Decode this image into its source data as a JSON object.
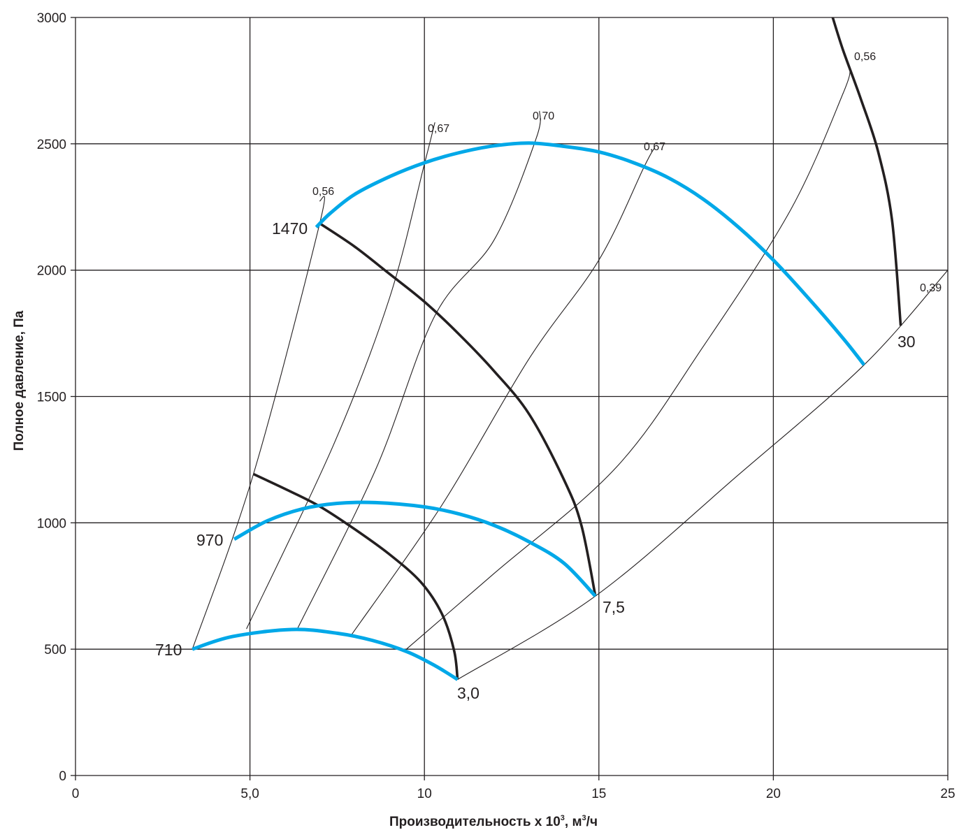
{
  "chart_data": {
    "type": "line",
    "title": "",
    "xlabel": "Производительность x 10",
    "xlabel_sup": "3",
    "xlabel_tail": ", м",
    "xlabel_sup2": "3",
    "xlabel_end": "/ч",
    "ylabel": "Полное давление, Па",
    "xlim": [
      0,
      25
    ],
    "ylim": [
      0,
      3000
    ],
    "grid": true,
    "x_ticks": [
      {
        "value": 0,
        "label": "0"
      },
      {
        "value": 5,
        "label": "5,0"
      },
      {
        "value": 10,
        "label": "10"
      },
      {
        "value": 15,
        "label": "15"
      },
      {
        "value": 20,
        "label": "20"
      },
      {
        "value": 25,
        "label": "25"
      }
    ],
    "y_ticks": [
      {
        "value": 0,
        "label": "0"
      },
      {
        "value": 500,
        "label": "500"
      },
      {
        "value": 1000,
        "label": "1000"
      },
      {
        "value": 1500,
        "label": "1500"
      },
      {
        "value": 2000,
        "label": "2000"
      },
      {
        "value": 2500,
        "label": "2500"
      },
      {
        "value": 3000,
        "label": "3000"
      }
    ],
    "speed_curves": [
      {
        "name": "710",
        "color": "#00a8e8",
        "points": [
          [
            3.35,
            500
          ],
          [
            4.5,
            550
          ],
          [
            6.2,
            578
          ],
          [
            7.5,
            563
          ],
          [
            8.5,
            535
          ],
          [
            9.5,
            490
          ],
          [
            10.3,
            435
          ],
          [
            10.95,
            380
          ]
        ]
      },
      {
        "name": "970",
        "color": "#00a8e8",
        "points": [
          [
            4.55,
            935
          ],
          [
            5.5,
            1008
          ],
          [
            6.5,
            1055
          ],
          [
            7.5,
            1077
          ],
          [
            8.6,
            1080
          ],
          [
            10,
            1063
          ],
          [
            11,
            1035
          ],
          [
            12,
            990
          ],
          [
            13,
            925
          ],
          [
            14,
            840
          ],
          [
            14.9,
            710
          ]
        ]
      },
      {
        "name": "1470",
        "color": "#00a8e8",
        "points": [
          [
            6.9,
            2170
          ],
          [
            7.3,
            2225
          ],
          [
            8,
            2300
          ],
          [
            9,
            2370
          ],
          [
            10,
            2425
          ],
          [
            11,
            2465
          ],
          [
            12,
            2492
          ],
          [
            13,
            2503
          ],
          [
            14,
            2490
          ],
          [
            15,
            2468
          ],
          [
            16,
            2425
          ],
          [
            17,
            2365
          ],
          [
            18,
            2280
          ],
          [
            19,
            2170
          ],
          [
            20,
            2040
          ],
          [
            21,
            1890
          ],
          [
            22,
            1730
          ],
          [
            22.6,
            1625
          ]
        ]
      }
    ],
    "power_curves": [
      {
        "name": "3,0",
        "color": "#231f20",
        "points": [
          [
            5.1,
            1193
          ],
          [
            6.1,
            1128
          ],
          [
            7,
            1065
          ],
          [
            8,
            975
          ],
          [
            9,
            875
          ],
          [
            9.9,
            765
          ],
          [
            10.5,
            640
          ],
          [
            10.85,
            495
          ],
          [
            10.95,
            380
          ]
        ]
      },
      {
        "name": "7,5",
        "color": "#231f20",
        "points": [
          [
            7.0,
            2185
          ],
          [
            8,
            2093
          ],
          [
            9,
            1985
          ],
          [
            10,
            1875
          ],
          [
            11,
            1745
          ],
          [
            12,
            1600
          ],
          [
            13,
            1430
          ],
          [
            14,
            1170
          ],
          [
            14.5,
            990
          ],
          [
            14.9,
            710
          ]
        ]
      },
      {
        "name": "30",
        "color": "#231f20",
        "points": [
          [
            21.7,
            3000
          ],
          [
            22,
            2870
          ],
          [
            22.5,
            2680
          ],
          [
            23,
            2470
          ],
          [
            23.4,
            2200
          ],
          [
            23.65,
            1780
          ]
        ]
      }
    ],
    "efficiency_rays": [
      {
        "name": "0,56",
        "points": [
          [
            3.35,
            500
          ],
          [
            5.1,
            1193
          ],
          [
            7.0,
            2185
          ],
          [
            7.0,
            2275
          ]
        ]
      },
      {
        "name": "0,67",
        "points": [
          [
            4.9,
            580
          ],
          [
            7.4,
            1310
          ],
          [
            9.0,
            1890
          ],
          [
            10.0,
            2420
          ],
          [
            10.3,
            2585
          ]
        ]
      },
      {
        "name": "0,70",
        "points": [
          [
            6.35,
            578
          ],
          [
            8.6,
            1210
          ],
          [
            10.3,
            1820
          ],
          [
            12.0,
            2120
          ],
          [
            13.2,
            2520
          ],
          [
            13.3,
            2630
          ]
        ]
      },
      {
        "name": "0,67",
        "points": [
          [
            7.9,
            555
          ],
          [
            10.5,
            1070
          ],
          [
            13.0,
            1650
          ],
          [
            15.0,
            2040
          ],
          [
            16.3,
            2410
          ],
          [
            16.6,
            2485
          ]
        ]
      },
      {
        "name": "0,56",
        "points": [
          [
            9.4,
            490
          ],
          [
            12.0,
            800
          ],
          [
            15.5,
            1220
          ],
          [
            18.0,
            1700
          ],
          [
            20.5,
            2240
          ],
          [
            22.0,
            2700
          ],
          [
            22.2,
            2800
          ]
        ]
      },
      {
        "name": "0,39",
        "points": [
          [
            10.95,
            380
          ],
          [
            14.9,
            710
          ],
          [
            19.0,
            1190
          ],
          [
            22.6,
            1625
          ],
          [
            25.0,
            2000
          ]
        ]
      }
    ],
    "annotations": {
      "speed_710": "710",
      "speed_970": "970",
      "speed_1470": "1470",
      "power_3": "3,0",
      "power_7_5": "7,5",
      "power_30": "30",
      "eff_056_left": "0,56",
      "eff_067_left": "0,67",
      "eff_070": "0,70",
      "eff_067_right": "0,67",
      "eff_056_right": "0,56",
      "eff_039": "0,39"
    }
  }
}
